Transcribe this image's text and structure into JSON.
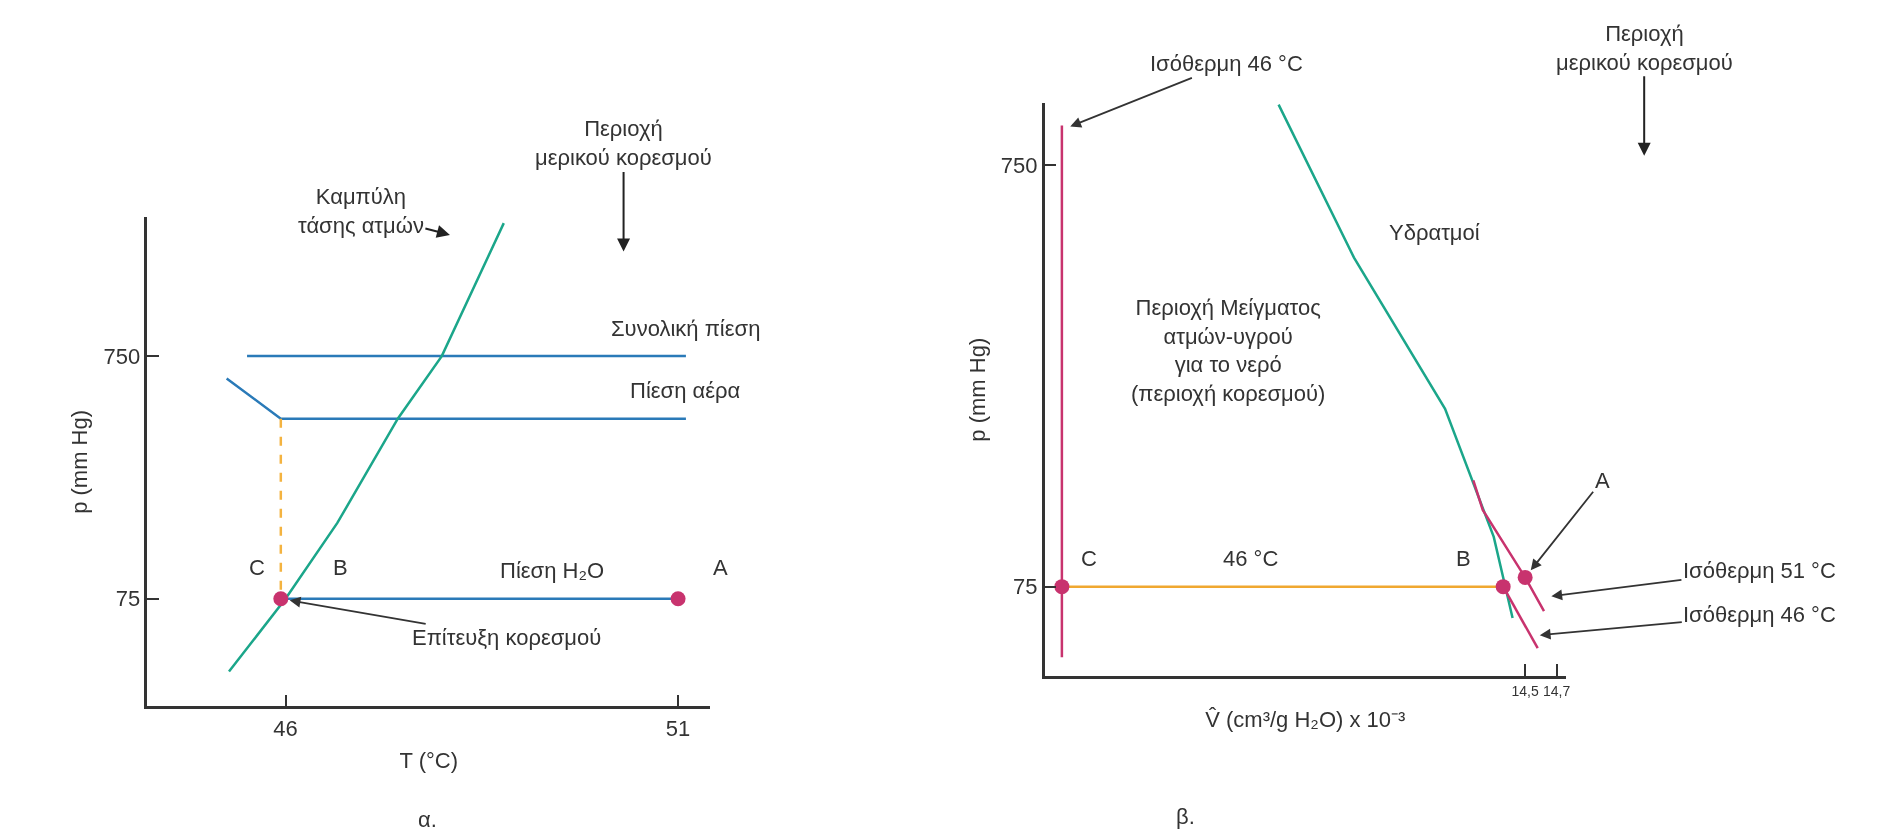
{
  "chart_data": [
    {
      "type": "line",
      "xlabel": "T (°C)",
      "ylabel": "p (mm Hg)",
      "log": "y",
      "xlim": [
        44.24,
        51.41
      ],
      "xticks": [
        46,
        51
      ],
      "ylim": [
        27,
        2800
      ],
      "yticks": [
        75,
        750
      ],
      "series": [
        {
          "type": "line",
          "color": "#2a7ab8",
          "x": [
            45.51,
            51.1
          ],
          "values": [
            750,
            750
          ],
          "line_style": "solid",
          "marker": "none"
        },
        {
          "type": "line",
          "color": "#2a7ab8",
          "x": [
            45.25,
            45.94,
            51.1
          ],
          "values": [
            607,
            414,
            414
          ],
          "line_style": "solid",
          "marker": "none"
        },
        {
          "type": "line",
          "color": "#2a7ab8",
          "x": [
            46,
            51
          ],
          "values": [
            75,
            75
          ],
          "line_style": "solid",
          "marker": "none"
        },
        {
          "type": "line",
          "color": "#f4b340",
          "x": [
            45.94,
            45.94
          ],
          "values": [
            414,
            75
          ],
          "line_style": "dashed",
          "marker": "none"
        },
        {
          "type": "line",
          "color": "#1ba68a",
          "x": [
            45.28,
            46,
            46.66,
            47.43,
            47.99,
            48.78
          ],
          "values": [
            37.6,
            75,
            154,
            414,
            750,
            2650
          ],
          "line_style": "solid",
          "marker": "none"
        },
        {
          "type": "scatter",
          "color": "#c8336e",
          "x": [
            45.94,
            51
          ],
          "values": [
            75,
            75
          ],
          "marker": "circle"
        }
      ],
      "annotations": [
        "Καμπύλη\nτάσης ατμών",
        "Περιοχή\nμερικού κορεσμού",
        {
          "text": "Συνολική πίεση",
          "x": 51.1,
          "y": 750
        },
        {
          "text": "Πίεση αέρα",
          "x": 51.1,
          "y": 414
        },
        {
          "text": "Πίεση H₂O",
          "x": 49.4,
          "y": 75
        },
        {
          "text": "C",
          "x": 45.94,
          "y": 75
        },
        {
          "text": "B",
          "x": 45.94,
          "y": 75
        },
        {
          "text": "A",
          "x": 51,
          "y": 75
        },
        {
          "text": "Επίτευξη κορεσμού",
          "x": 45.94,
          "y": 75
        },
        "α."
      ]
    },
    {
      "type": "line",
      "xlabel": "V̂ (cm³/g H₂O) x 10⁻³",
      "ylabel": "p (mm Hg)",
      "log": "y",
      "xlim": [
        11.44,
        14.76
      ],
      "xticks": [
        {
          "value": 14.5,
          "label": "14,5"
        },
        {
          "value": 14.7,
          "label": "14,7"
        }
      ],
      "ylim": [
        46,
        1050
      ],
      "yticks": [
        75,
        750
      ],
      "series": [
        {
          "type": "line",
          "color": "#c8336e",
          "x": [
            11.55,
            11.55
          ],
          "values": [
            930,
            51
          ],
          "line_style": "solid",
          "marker": "none"
        },
        {
          "type": "line",
          "color": "#1ba68a",
          "x": [
            12.93,
            13.41,
            13.99,
            14.3,
            14.42
          ],
          "values": [
            1042,
            452,
            198,
            98.4,
            63.2
          ],
          "line_style": "solid",
          "marker": "none"
        },
        {
          "type": "line",
          "color": "#c8336e",
          "x": [
            14.17,
            14.23,
            14.5,
            14.62
          ],
          "values": [
            134,
            114,
            78.9,
            65.6
          ],
          "line_style": "solid",
          "marker": "none"
        },
        {
          "type": "line",
          "color": "#c8336e",
          "x": [
            14.36,
            14.58
          ],
          "values": [
            75,
            53.6
          ],
          "line_style": "solid",
          "marker": "none"
        },
        {
          "type": "line",
          "color": "#f0a830",
          "x": [
            14.36,
            11.55
          ],
          "values": [
            75,
            75
          ],
          "line_style": "solid",
          "marker": "none"
        },
        {
          "type": "scatter",
          "color": "#c8336e",
          "x": [
            11.55,
            14.36,
            14.5
          ],
          "values": [
            75,
            75,
            78.9
          ],
          "marker": "circle"
        }
      ],
      "annotations": [
        {
          "text": "Ισόθερμη 46 °C",
          "x": 11.55,
          "y": 908
        },
        "Περιοχή\nμερικού κορεσμού",
        "Υδρατμοί",
        "Περιοχή Μείγματος\nατμών-υγρού\nγια το νερό\n(περιοχή κορεσμού)",
        {
          "text": "46 °C",
          "x": 12.75,
          "y": 75
        },
        {
          "text": "C",
          "x": 11.55,
          "y": 75
        },
        {
          "text": "B",
          "x": 14.36,
          "y": 75
        },
        {
          "text": "A",
          "x": 14.5,
          "y": 78.9
        },
        {
          "text": "Ισόθερμη 51 °C",
          "x": 14.61,
          "y": 70.8
        },
        {
          "text": "Ισόθερμη 46 °C",
          "x": 14.536,
          "y": 57.3
        },
        "β."
      ]
    }
  ]
}
